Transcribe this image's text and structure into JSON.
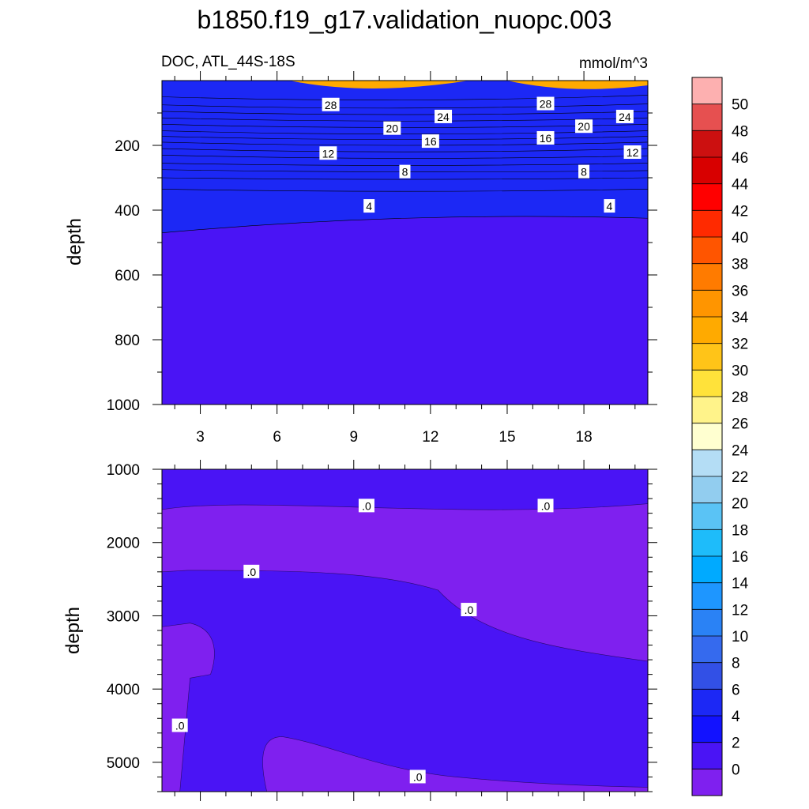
{
  "chart_data": {
    "type": "heatmap",
    "title": "b1850.f19_g17.validation_nuopc.003",
    "subtitle_left": "DOC, ATL_44S-18S",
    "subtitle_right": "mmol/m^3",
    "ylabel": "depth",
    "xlabel": "",
    "x_ticks": [
      "3",
      "6",
      "9",
      "12",
      "15",
      "18"
    ],
    "x_range": [
      1.5,
      20.5
    ],
    "top_panel": {
      "ylim": [
        0,
        1000
      ],
      "y_ticks": [
        "200",
        "400",
        "600",
        "800",
        "1000"
      ],
      "contour_levels": [
        30,
        28,
        26,
        24,
        22,
        20,
        18,
        16,
        14,
        12,
        10,
        8,
        6,
        4,
        2
      ],
      "contour_depths": [
        [
          50,
          60,
          45
        ],
        [
          75,
          85,
          72
        ],
        [
          95,
          105,
          95
        ],
        [
          115,
          125,
          115
        ],
        [
          135,
          145,
          135
        ],
        [
          155,
          165,
          155
        ],
        [
          172,
          182,
          172
        ],
        [
          190,
          200,
          190
        ],
        [
          210,
          220,
          210
        ],
        [
          230,
          240,
          232
        ],
        [
          255,
          262,
          255
        ],
        [
          275,
          282,
          278
        ],
        [
          300,
          305,
          300
        ],
        [
          335,
          342,
          335
        ],
        [
          470,
          425,
          425
        ]
      ],
      "contour_labels": [
        {
          "text": "28",
          "x": 8.1,
          "depth": 75
        },
        {
          "text": "28",
          "x": 16.5,
          "depth": 72
        },
        {
          "text": "24",
          "x": 12.5,
          "depth": 112
        },
        {
          "text": "24",
          "x": 19.6,
          "depth": 112
        },
        {
          "text": "20",
          "x": 10.5,
          "depth": 148
        },
        {
          "text": "20",
          "x": 18.0,
          "depth": 142
        },
        {
          "text": "16",
          "x": 12.0,
          "depth": 188
        },
        {
          "text": "16",
          "x": 16.5,
          "depth": 178
        },
        {
          "text": "12",
          "x": 8.0,
          "depth": 225
        },
        {
          "text": "12",
          "x": 19.9,
          "depth": 222
        },
        {
          "text": "8",
          "x": 11.0,
          "depth": 282
        },
        {
          "text": "8",
          "x": 18.0,
          "depth": 282
        },
        {
          "text": "4",
          "x": 9.6,
          "depth": 388
        },
        {
          "text": "4",
          "x": 19.0,
          "depth": 388
        }
      ]
    },
    "bottom_panel": {
      "ylim": [
        1000,
        5400
      ],
      "y_ticks": [
        "1000",
        "2000",
        "3000",
        "4000",
        "5000"
      ],
      "contour_labels": [
        {
          "text": ".0",
          "x": 9.5,
          "depth": 1500
        },
        {
          "text": ".0",
          "x": 16.5,
          "depth": 1500
        },
        {
          "text": ".0",
          "x": 5.0,
          "depth": 2400
        },
        {
          "text": ".0",
          "x": 13.5,
          "depth": 2920
        },
        {
          "text": ".0",
          "x": 2.2,
          "depth": 4500
        },
        {
          "text": ".0",
          "x": 11.5,
          "depth": 5200
        }
      ]
    },
    "colorbar": {
      "tick_labels": [
        "50",
        "48",
        "46",
        "44",
        "42",
        "40",
        "38",
        "36",
        "34",
        "32",
        "30",
        "28",
        "26",
        "24",
        "22",
        "20",
        "18",
        "16",
        "14",
        "12",
        "10",
        "8",
        "6",
        "4",
        "2",
        "0"
      ],
      "colors": [
        "#fdb0b0",
        "#e65050",
        "#cc1010",
        "#d80000",
        "#ff0000",
        "#ff2a00",
        "#ff5500",
        "#ff7b00",
        "#ff9500",
        "#ffaa00",
        "#ffc418",
        "#ffe23a",
        "#fff38a",
        "#ffffd0",
        "#b4ddf5",
        "#92cdef",
        "#5ac3f5",
        "#1ebcfa",
        "#00aaff",
        "#1e96ff",
        "#2a82f5",
        "#356aee",
        "#3250e6",
        "#1c28f5",
        "#1212ff",
        "#4a14f5",
        "#7f20ef"
      ]
    }
  }
}
